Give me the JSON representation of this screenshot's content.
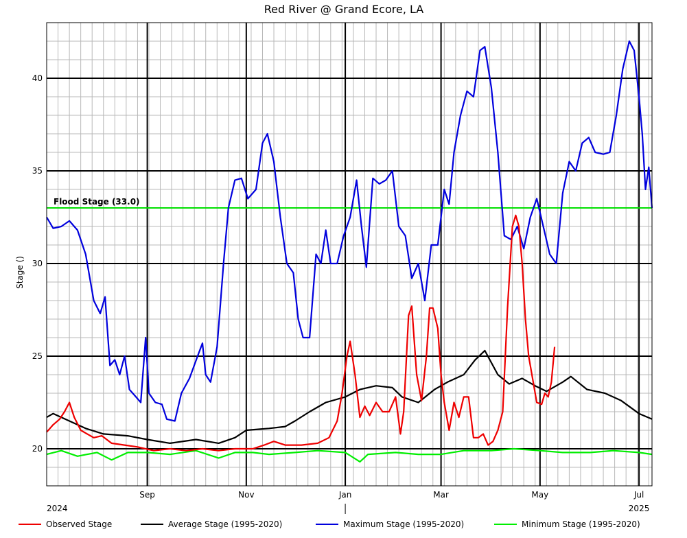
{
  "chart_data": {
    "type": "line",
    "title": "Red River @ Grand Ecore, LA",
    "ylabel": "Stage ()",
    "xlabel": "",
    "xlim": [
      "2024-07-01",
      "2025-07-09"
    ],
    "ylim": [
      18,
      43
    ],
    "y_ticks": [
      20,
      25,
      30,
      35,
      40
    ],
    "x_ticks": [
      {
        "date": "2024-09-01",
        "label": "Sep"
      },
      {
        "date": "2024-11-01",
        "label": "Nov"
      },
      {
        "date": "2025-01-01",
        "label": "Jan"
      },
      {
        "date": "2025-03-01",
        "label": "Mar"
      },
      {
        "date": "2025-05-01",
        "label": "May"
      },
      {
        "date": "2025-07-01",
        "label": "Jul"
      }
    ],
    "year_labels": [
      {
        "date": "2024-07-01",
        "label": "2024"
      },
      {
        "date": "2025-07-01",
        "label": "2025"
      }
    ],
    "grid": true,
    "legend_position": "bottom",
    "flood_stage": {
      "value": 33.0,
      "label": "Flood Stage (33.0)",
      "color": "#00e000"
    },
    "series": [
      {
        "name": "Observed Stage",
        "color": "#ee0000",
        "points": [
          [
            "2024-07-01",
            20.9
          ],
          [
            "2024-07-05",
            21.3
          ],
          [
            "2024-07-09",
            21.6
          ],
          [
            "2024-07-12",
            22.0
          ],
          [
            "2024-07-15",
            22.5
          ],
          [
            "2024-07-18",
            21.7
          ],
          [
            "2024-07-22",
            21.0
          ],
          [
            "2024-07-26",
            20.8
          ],
          [
            "2024-07-30",
            20.6
          ],
          [
            "2024-08-04",
            20.7
          ],
          [
            "2024-08-10",
            20.3
          ],
          [
            "2024-08-18",
            20.2
          ],
          [
            "2024-08-26",
            20.1
          ],
          [
            "2024-09-05",
            19.9
          ],
          [
            "2024-09-15",
            20.0
          ],
          [
            "2024-09-25",
            19.9
          ],
          [
            "2024-10-05",
            20.0
          ],
          [
            "2024-10-15",
            19.9
          ],
          [
            "2024-10-25",
            20.0
          ],
          [
            "2024-11-05",
            20.0
          ],
          [
            "2024-11-12",
            20.2
          ],
          [
            "2024-11-18",
            20.4
          ],
          [
            "2024-11-25",
            20.2
          ],
          [
            "2024-12-05",
            20.2
          ],
          [
            "2024-12-15",
            20.3
          ],
          [
            "2024-12-22",
            20.6
          ],
          [
            "2024-12-27",
            21.5
          ],
          [
            "2024-12-30",
            23.0
          ],
          [
            "2025-01-02",
            25.0
          ],
          [
            "2025-01-04",
            25.8
          ],
          [
            "2025-01-07",
            24.0
          ],
          [
            "2025-01-10",
            21.7
          ],
          [
            "2025-01-13",
            22.3
          ],
          [
            "2025-01-16",
            21.8
          ],
          [
            "2025-01-20",
            22.5
          ],
          [
            "2025-01-24",
            22.0
          ],
          [
            "2025-01-28",
            22.0
          ],
          [
            "2025-02-01",
            22.8
          ],
          [
            "2025-02-04",
            20.8
          ],
          [
            "2025-02-06",
            22.0
          ],
          [
            "2025-02-09",
            27.2
          ],
          [
            "2025-02-11",
            27.7
          ],
          [
            "2025-02-14",
            24.0
          ],
          [
            "2025-02-17",
            22.6
          ],
          [
            "2025-02-20",
            25.0
          ],
          [
            "2025-02-22",
            27.6
          ],
          [
            "2025-02-24",
            27.6
          ],
          [
            "2025-02-27",
            26.5
          ],
          [
            "2025-03-01",
            24.0
          ],
          [
            "2025-03-03",
            22.5
          ],
          [
            "2025-03-06",
            21.0
          ],
          [
            "2025-03-09",
            22.5
          ],
          [
            "2025-03-12",
            21.7
          ],
          [
            "2025-03-15",
            22.8
          ],
          [
            "2025-03-18",
            22.8
          ],
          [
            "2025-03-21",
            20.6
          ],
          [
            "2025-03-24",
            20.6
          ],
          [
            "2025-03-27",
            20.8
          ],
          [
            "2025-03-30",
            20.2
          ],
          [
            "2025-04-02",
            20.4
          ],
          [
            "2025-04-05",
            21.0
          ],
          [
            "2025-04-08",
            22.0
          ],
          [
            "2025-04-11",
            27.6
          ],
          [
            "2025-04-14",
            32.0
          ],
          [
            "2025-04-16",
            32.6
          ],
          [
            "2025-04-18",
            32.0
          ],
          [
            "2025-04-20",
            30.0
          ],
          [
            "2025-04-22",
            27.0
          ],
          [
            "2025-04-24",
            25.0
          ],
          [
            "2025-04-27",
            23.5
          ],
          [
            "2025-04-29",
            22.5
          ],
          [
            "2025-05-02",
            22.4
          ],
          [
            "2025-05-04",
            23.0
          ],
          [
            "2025-05-06",
            22.8
          ],
          [
            "2025-05-08",
            23.6
          ],
          [
            "2025-05-10",
            25.5
          ]
        ]
      },
      {
        "name": "Average Stage (1995-2020)",
        "color": "#000000",
        "points": [
          [
            "2024-07-01",
            21.7
          ],
          [
            "2024-07-05",
            21.9
          ],
          [
            "2024-07-15",
            21.5
          ],
          [
            "2024-07-25",
            21.1
          ],
          [
            "2024-08-05",
            20.8
          ],
          [
            "2024-08-20",
            20.7
          ],
          [
            "2024-09-01",
            20.5
          ],
          [
            "2024-09-15",
            20.3
          ],
          [
            "2024-10-01",
            20.5
          ],
          [
            "2024-10-15",
            20.3
          ],
          [
            "2024-10-25",
            20.6
          ],
          [
            "2024-11-01",
            21.0
          ],
          [
            "2024-11-15",
            21.1
          ],
          [
            "2024-11-25",
            21.2
          ],
          [
            "2024-12-01",
            21.5
          ],
          [
            "2024-12-10",
            22.0
          ],
          [
            "2024-12-20",
            22.5
          ],
          [
            "2025-01-01",
            22.8
          ],
          [
            "2025-01-10",
            23.2
          ],
          [
            "2025-01-20",
            23.4
          ],
          [
            "2025-01-30",
            23.3
          ],
          [
            "2025-02-05",
            22.8
          ],
          [
            "2025-02-15",
            22.5
          ],
          [
            "2025-02-25",
            23.2
          ],
          [
            "2025-03-05",
            23.6
          ],
          [
            "2025-03-15",
            24.0
          ],
          [
            "2025-03-22",
            24.8
          ],
          [
            "2025-03-28",
            25.3
          ],
          [
            "2025-04-05",
            24.0
          ],
          [
            "2025-04-12",
            23.5
          ],
          [
            "2025-04-20",
            23.8
          ],
          [
            "2025-04-28",
            23.4
          ],
          [
            "2025-05-05",
            23.1
          ],
          [
            "2025-05-15",
            23.6
          ],
          [
            "2025-05-20",
            23.9
          ],
          [
            "2025-05-30",
            23.2
          ],
          [
            "2025-06-10",
            23.0
          ],
          [
            "2025-06-20",
            22.6
          ],
          [
            "2025-07-01",
            21.9
          ],
          [
            "2025-07-09",
            21.6
          ]
        ]
      },
      {
        "name": "Maximum Stage (1995-2020)",
        "color": "#0000dd",
        "points": [
          [
            "2024-07-01",
            32.5
          ],
          [
            "2024-07-05",
            31.9
          ],
          [
            "2024-07-10",
            32.0
          ],
          [
            "2024-07-15",
            32.3
          ],
          [
            "2024-07-20",
            31.8
          ],
          [
            "2024-07-25",
            30.5
          ],
          [
            "2024-07-30",
            28.0
          ],
          [
            "2024-08-03",
            27.3
          ],
          [
            "2024-08-06",
            28.2
          ],
          [
            "2024-08-09",
            24.5
          ],
          [
            "2024-08-12",
            24.8
          ],
          [
            "2024-08-15",
            24.0
          ],
          [
            "2024-08-18",
            25.0
          ],
          [
            "2024-08-21",
            23.2
          ],
          [
            "2024-08-25",
            22.8
          ],
          [
            "2024-08-28",
            22.5
          ],
          [
            "2024-08-31",
            26.0
          ],
          [
            "2024-09-02",
            23.0
          ],
          [
            "2024-09-06",
            22.5
          ],
          [
            "2024-09-10",
            22.4
          ],
          [
            "2024-09-13",
            21.6
          ],
          [
            "2024-09-18",
            21.5
          ],
          [
            "2024-09-22",
            23.0
          ],
          [
            "2024-09-27",
            23.8
          ],
          [
            "2024-10-02",
            25.0
          ],
          [
            "2024-10-05",
            25.7
          ],
          [
            "2024-10-07",
            24.0
          ],
          [
            "2024-10-10",
            23.6
          ],
          [
            "2024-10-14",
            25.5
          ],
          [
            "2024-10-18",
            30.0
          ],
          [
            "2024-10-21",
            33.0
          ],
          [
            "2024-10-25",
            34.5
          ],
          [
            "2024-10-29",
            34.6
          ],
          [
            "2024-11-02",
            33.5
          ],
          [
            "2024-11-07",
            34.0
          ],
          [
            "2024-11-11",
            36.5
          ],
          [
            "2024-11-14",
            37.0
          ],
          [
            "2024-11-18",
            35.5
          ],
          [
            "2024-11-22",
            32.5
          ],
          [
            "2024-11-26",
            30.0
          ],
          [
            "2024-11-30",
            29.5
          ],
          [
            "2024-12-03",
            27.0
          ],
          [
            "2024-12-06",
            26.0
          ],
          [
            "2024-12-10",
            26.0
          ],
          [
            "2024-12-14",
            30.5
          ],
          [
            "2024-12-17",
            30.0
          ],
          [
            "2024-12-20",
            31.8
          ],
          [
            "2024-12-23",
            30.0
          ],
          [
            "2024-12-27",
            30.0
          ],
          [
            "2024-12-31",
            31.5
          ],
          [
            "2025-01-04",
            32.5
          ],
          [
            "2025-01-08",
            34.5
          ],
          [
            "2025-01-11",
            32.0
          ],
          [
            "2025-01-14",
            29.8
          ],
          [
            "2025-01-18",
            34.6
          ],
          [
            "2025-01-22",
            34.3
          ],
          [
            "2025-01-26",
            34.5
          ],
          [
            "2025-01-30",
            35.0
          ],
          [
            "2025-02-03",
            32.0
          ],
          [
            "2025-02-07",
            31.5
          ],
          [
            "2025-02-11",
            29.2
          ],
          [
            "2025-02-15",
            30.0
          ],
          [
            "2025-02-19",
            28.0
          ],
          [
            "2025-02-23",
            31.0
          ],
          [
            "2025-02-27",
            31.0
          ],
          [
            "2025-03-03",
            34.0
          ],
          [
            "2025-03-06",
            33.2
          ],
          [
            "2025-03-09",
            36.0
          ],
          [
            "2025-03-13",
            38.0
          ],
          [
            "2025-03-17",
            39.3
          ],
          [
            "2025-03-21",
            39.0
          ],
          [
            "2025-03-25",
            41.5
          ],
          [
            "2025-03-28",
            41.7
          ],
          [
            "2025-04-01",
            39.5
          ],
          [
            "2025-04-05",
            36.0
          ],
          [
            "2025-04-09",
            31.5
          ],
          [
            "2025-04-13",
            31.3
          ],
          [
            "2025-04-17",
            32.0
          ],
          [
            "2025-04-21",
            30.8
          ],
          [
            "2025-04-25",
            32.5
          ],
          [
            "2025-04-29",
            33.5
          ],
          [
            "2025-05-03",
            32.0
          ],
          [
            "2025-05-07",
            30.5
          ],
          [
            "2025-05-11",
            30.0
          ],
          [
            "2025-05-15",
            33.8
          ],
          [
            "2025-05-19",
            35.5
          ],
          [
            "2025-05-23",
            35.0
          ],
          [
            "2025-05-27",
            36.5
          ],
          [
            "2025-05-31",
            36.8
          ],
          [
            "2025-06-04",
            36.0
          ],
          [
            "2025-06-09",
            35.9
          ],
          [
            "2025-06-13",
            36.0
          ],
          [
            "2025-06-17",
            38.0
          ],
          [
            "2025-06-21",
            40.5
          ],
          [
            "2025-06-25",
            42.0
          ],
          [
            "2025-06-28",
            41.5
          ],
          [
            "2025-07-01",
            39.0
          ],
          [
            "2025-07-03",
            37.0
          ],
          [
            "2025-07-05",
            34.0
          ],
          [
            "2025-07-07",
            35.2
          ],
          [
            "2025-07-09",
            33.0
          ]
        ]
      },
      {
        "name": "Minimum Stage (1995-2020)",
        "color": "#00ee00",
        "points": [
          [
            "2024-07-01",
            19.7
          ],
          [
            "2024-07-10",
            19.9
          ],
          [
            "2024-07-20",
            19.6
          ],
          [
            "2024-08-01",
            19.8
          ],
          [
            "2024-08-10",
            19.4
          ],
          [
            "2024-08-20",
            19.8
          ],
          [
            "2024-09-01",
            19.8
          ],
          [
            "2024-09-15",
            19.7
          ],
          [
            "2024-10-01",
            19.9
          ],
          [
            "2024-10-15",
            19.5
          ],
          [
            "2024-10-25",
            19.8
          ],
          [
            "2024-11-05",
            19.8
          ],
          [
            "2024-11-15",
            19.7
          ],
          [
            "2024-12-01",
            19.8
          ],
          [
            "2024-12-15",
            19.9
          ],
          [
            "2025-01-01",
            19.8
          ],
          [
            "2025-01-10",
            19.3
          ],
          [
            "2025-01-15",
            19.7
          ],
          [
            "2025-02-01",
            19.8
          ],
          [
            "2025-02-15",
            19.7
          ],
          [
            "2025-03-01",
            19.7
          ],
          [
            "2025-03-15",
            19.9
          ],
          [
            "2025-04-01",
            19.9
          ],
          [
            "2025-04-15",
            20.0
          ],
          [
            "2025-05-01",
            19.9
          ],
          [
            "2025-05-15",
            19.8
          ],
          [
            "2025-06-01",
            19.8
          ],
          [
            "2025-06-15",
            19.9
          ],
          [
            "2025-07-01",
            19.8
          ],
          [
            "2025-07-09",
            19.7
          ]
        ]
      }
    ]
  }
}
